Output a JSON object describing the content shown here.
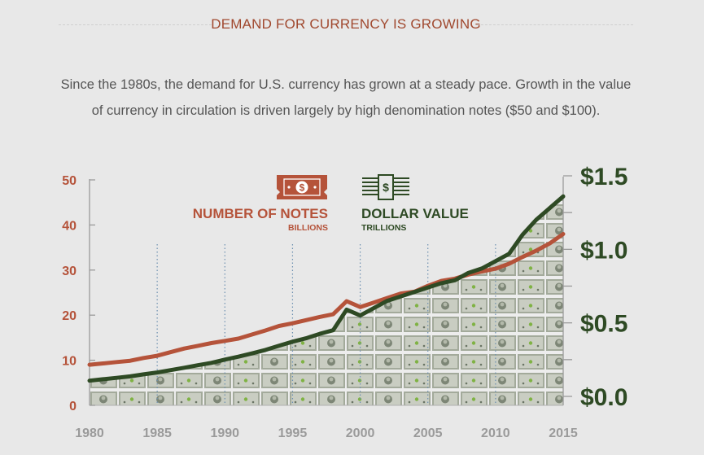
{
  "header": {
    "title": "DEMAND FOR CURRENCY IS GROWING"
  },
  "description": "Since the 1980s, the demand for U.S. currency has grown at a steady pace. Growth in the value of currency in circulation is driven largely by high denomination notes ($50 and $100).",
  "colors": {
    "notes": "#b5533a",
    "value": "#2e4a24",
    "axis_text": "#9a9a9a",
    "background": "#e8e8e8"
  },
  "icons": {
    "notes": "banknote-icon",
    "value": "bill-stack-icon"
  },
  "chart_data": {
    "type": "line",
    "x_ticks": [
      "1980",
      "1985",
      "1990",
      "1995",
      "2000",
      "2005",
      "2010",
      "2015"
    ],
    "xlim": [
      1980,
      2015
    ],
    "left_axis": {
      "ticks": [
        "50",
        "40",
        "30",
        "20",
        "10",
        "0"
      ],
      "ylim": [
        0,
        50
      ]
    },
    "right_axis": {
      "ticks": [
        "$1.5",
        "$1.0",
        "$0.5",
        "$0.0"
      ],
      "ylim": [
        0,
        1.5
      ]
    },
    "series": [
      {
        "name": "NUMBER OF NOTES",
        "unit_label": "BILLIONS",
        "axis": "left",
        "x": [
          1980,
          1981,
          1982,
          1983,
          1984,
          1985,
          1986,
          1987,
          1988,
          1989,
          1990,
          1991,
          1992,
          1993,
          1994,
          1995,
          1996,
          1997,
          1998,
          1999,
          2000,
          2001,
          2002,
          2003,
          2004,
          2005,
          2006,
          2007,
          2008,
          2009,
          2010,
          2011,
          2012,
          2013,
          2014,
          2015
        ],
        "values": [
          9.0,
          9.3,
          9.6,
          9.9,
          10.5,
          11.0,
          11.8,
          12.6,
          13.2,
          13.8,
          14.3,
          14.8,
          15.7,
          16.6,
          17.6,
          18.2,
          18.9,
          19.6,
          20.2,
          23.1,
          21.8,
          22.8,
          23.8,
          24.8,
          25.2,
          26.5,
          27.6,
          28.1,
          29.0,
          29.7,
          30.3,
          31.4,
          32.9,
          34.3,
          35.9,
          38.0
        ]
      },
      {
        "name": "DOLLAR VALUE",
        "unit_label": "TRILLIONS",
        "axis": "right",
        "x": [
          1980,
          1981,
          1982,
          1983,
          1984,
          1985,
          1986,
          1987,
          1988,
          1989,
          1990,
          1991,
          1992,
          1993,
          1994,
          1995,
          1996,
          1997,
          1998,
          1999,
          2000,
          2001,
          2002,
          2003,
          2004,
          2005,
          2006,
          2007,
          2008,
          2009,
          2010,
          2011,
          2012,
          2013,
          2014,
          2015
        ],
        "values": [
          0.107,
          0.117,
          0.126,
          0.136,
          0.15,
          0.163,
          0.179,
          0.195,
          0.212,
          0.228,
          0.25,
          0.27,
          0.292,
          0.316,
          0.345,
          0.372,
          0.395,
          0.425,
          0.45,
          0.59,
          0.55,
          0.6,
          0.65,
          0.68,
          0.71,
          0.74,
          0.77,
          0.79,
          0.84,
          0.87,
          0.92,
          0.97,
          1.1,
          1.2,
          1.28,
          1.36
        ]
      }
    ]
  }
}
